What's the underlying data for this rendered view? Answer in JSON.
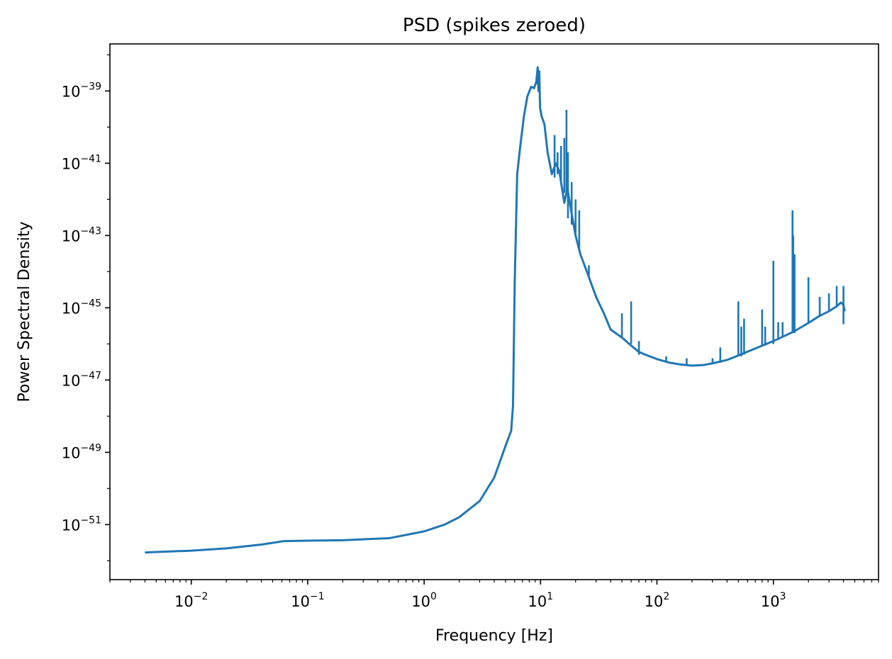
{
  "chart_data": {
    "type": "line",
    "title": "PSD (spikes zeroed)",
    "xlabel": "Frequency [Hz]",
    "ylabel": "Power Spectral Density",
    "xscale": "log",
    "yscale": "log",
    "xlim": [
      0.002,
      8000
    ],
    "ylim": [
      3e-53,
      2e-38
    ],
    "grid": false,
    "x_ticks": [
      {
        "base": "10",
        "exp": "−2",
        "value": 0.01
      },
      {
        "base": "10",
        "exp": "−1",
        "value": 0.1
      },
      {
        "base": "10",
        "exp": "0",
        "value": 1
      },
      {
        "base": "10",
        "exp": "1",
        "value": 10
      },
      {
        "base": "10",
        "exp": "2",
        "value": 100
      },
      {
        "base": "10",
        "exp": "3",
        "value": 1000
      }
    ],
    "y_ticks": [
      {
        "base": "10",
        "exp": "−51",
        "value": 1e-51
      },
      {
        "base": "10",
        "exp": "−49",
        "value": 1e-49
      },
      {
        "base": "10",
        "exp": "−47",
        "value": 1e-47
      },
      {
        "base": "10",
        "exp": "−45",
        "value": 1e-45
      },
      {
        "base": "10",
        "exp": "−43",
        "value": 1e-43
      },
      {
        "base": "10",
        "exp": "−41",
        "value": 1e-41
      },
      {
        "base": "10",
        "exp": "−39",
        "value": 1e-39
      }
    ],
    "series": [
      {
        "name": "PSD",
        "color": "#1f77b4",
        "x": [
          0.004,
          0.01,
          0.02,
          0.04,
          0.0625,
          0.1,
          0.2,
          0.5,
          1.0,
          1.5,
          2.0,
          3.0,
          4.0,
          5.0,
          5.6,
          5.8,
          6.0,
          6.3,
          6.7,
          7.2,
          7.7,
          8.3,
          8.8,
          9.2,
          9.45,
          9.6,
          9.75,
          9.9,
          10.2,
          10.8,
          11.5,
          12.5,
          13.5,
          14.5,
          16.0,
          17.0,
          18.5,
          20.0,
          22.0,
          25.0,
          30.0,
          35.0,
          40.0,
          50.0,
          60.0,
          70.0,
          80.0,
          100.0,
          130.0,
          160.0,
          200.0,
          250.0,
          300.0,
          400.0,
          500.0,
          700.0,
          1000.0,
          1500.0,
          2000.0,
          2500.0,
          3000.0,
          3500.0,
          3800.0,
          4000.0,
          4096.0
        ],
        "y": [
          1.7e-52,
          1.9e-52,
          2.2e-52,
          2.8e-52,
          3.5e-52,
          3.6e-52,
          3.7e-52,
          4.2e-52,
          6.5e-52,
          1e-51,
          1.6e-51,
          4.5e-51,
          2e-50,
          1.5e-49,
          4e-49,
          2e-48,
          5e-45,
          5e-42,
          3e-41,
          2e-40,
          7e-40,
          1.3e-39,
          1.2e-39,
          1.8e-39,
          4.5e-39,
          1e-39,
          3.5e-39,
          3.5e-40,
          2e-40,
          1.2e-40,
          2e-41,
          5e-42,
          1e-41,
          6e-42,
          8e-43,
          2e-42,
          4e-43,
          1e-43,
          3e-44,
          1e-44,
          2e-45,
          7e-46,
          2.5e-46,
          1.5e-46,
          9e-47,
          6e-47,
          5e-47,
          3.8e-47,
          3e-47,
          2.7e-47,
          2.5e-47,
          2.6e-47,
          2.9e-47,
          3.6e-47,
          4.8e-47,
          7.5e-47,
          1.2e-46,
          2.2e-46,
          3.8e-46,
          6e-46,
          8e-46,
          1.1e-45,
          1.4e-45,
          1.2e-45,
          8e-46
        ]
      }
    ],
    "spikes": [
      {
        "x": 9.45,
        "y": 4.5e-39,
        "base": 1.5e-39
      },
      {
        "x": 13.2,
        "y": 6e-41,
        "base": 4e-42
      },
      {
        "x": 14.0,
        "y": 2e-41,
        "base": 5e-42
      },
      {
        "x": 15.0,
        "y": 3e-41,
        "base": 3e-42
      },
      {
        "x": 16.0,
        "y": 5e-41,
        "base": 1.5e-42
      },
      {
        "x": 16.7,
        "y": 3e-40,
        "base": 1.5e-42
      },
      {
        "x": 17.2,
        "y": 2e-41,
        "base": 3e-43
      },
      {
        "x": 18.5,
        "y": 3e-42,
        "base": 2e-43
      },
      {
        "x": 20.0,
        "y": 1e-42,
        "base": 1e-43
      },
      {
        "x": 21.5,
        "y": 5e-43,
        "base": 4e-44
      },
      {
        "x": 26.0,
        "y": 1.5e-44,
        "base": 7e-45
      },
      {
        "x": 50.0,
        "y": 7e-46,
        "base": 1.5e-46
      },
      {
        "x": 60.0,
        "y": 1.5e-45,
        "base": 1e-46
      },
      {
        "x": 70.0,
        "y": 1.2e-46,
        "base": 5e-47
      },
      {
        "x": 120.0,
        "y": 4.5e-47,
        "base": 3e-47
      },
      {
        "x": 180.0,
        "y": 4e-47,
        "base": 2.5e-47
      },
      {
        "x": 300.0,
        "y": 4e-47,
        "base": 2.8e-47
      },
      {
        "x": 350.0,
        "y": 8e-47,
        "base": 3e-47
      },
      {
        "x": 500.0,
        "y": 1.5e-45,
        "base": 4.5e-47
      },
      {
        "x": 530.0,
        "y": 3e-46,
        "base": 4.5e-47
      },
      {
        "x": 560.0,
        "y": 5e-46,
        "base": 5e-47
      },
      {
        "x": 800.0,
        "y": 9e-46,
        "base": 9e-47
      },
      {
        "x": 850.0,
        "y": 3e-46,
        "base": 9e-47
      },
      {
        "x": 1000.0,
        "y": 2e-44,
        "base": 1e-46
      },
      {
        "x": 1100.0,
        "y": 4e-46,
        "base": 1.3e-46
      },
      {
        "x": 1200.0,
        "y": 4e-46,
        "base": 1.5e-46
      },
      {
        "x": 1460.0,
        "y": 5e-43,
        "base": 2e-46
      },
      {
        "x": 1480.0,
        "y": 1e-43,
        "base": 2e-46
      },
      {
        "x": 1520.0,
        "y": 3e-44,
        "base": 2e-46
      },
      {
        "x": 2000.0,
        "y": 7e-45,
        "base": 3.8e-46
      },
      {
        "x": 2500.0,
        "y": 2e-45,
        "base": 6e-46
      },
      {
        "x": 3000.0,
        "y": 2.5e-45,
        "base": 8e-46
      },
      {
        "x": 3500.0,
        "y": 4e-45,
        "base": 1.1e-45
      },
      {
        "x": 4000.0,
        "y": 4e-45,
        "base": 3.5e-46
      }
    ]
  }
}
